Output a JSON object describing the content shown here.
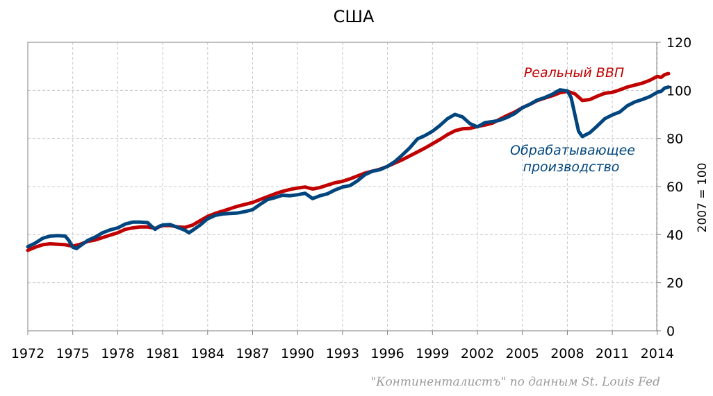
{
  "chart_data": {
    "type": "line",
    "title": "США",
    "ylabel": "2007 = 100",
    "ylim": [
      0,
      120
    ],
    "xlim": [
      1972,
      2014.75
    ],
    "y_ticks": [
      "0",
      "20",
      "40",
      "60",
      "80",
      "100",
      "120"
    ],
    "x_ticks": [
      "1972",
      "1975",
      "1978",
      "1981",
      "1984",
      "1987",
      "1990",
      "1993",
      "1996",
      "1999",
      "2002",
      "2005",
      "2008",
      "2011",
      "2014"
    ],
    "grid": true,
    "y_axis_position": "right",
    "colors": {
      "gdp": "#c00000",
      "manufacturing": "#00457e",
      "grid": "#c8c8c8",
      "axis": "#808080"
    },
    "series": [
      {
        "key": "gdp",
        "name": "Реальный ВВП",
        "points": [
          [
            1972.0,
            33.5
          ],
          [
            1972.5,
            34.8
          ],
          [
            1973.0,
            35.8
          ],
          [
            1973.5,
            36.2
          ],
          [
            1974.0,
            36.0
          ],
          [
            1974.5,
            35.8
          ],
          [
            1975.0,
            35.2
          ],
          [
            1975.5,
            36.0
          ],
          [
            1976.0,
            37.2
          ],
          [
            1976.5,
            37.8
          ],
          [
            1977.0,
            38.8
          ],
          [
            1977.5,
            39.8
          ],
          [
            1978.0,
            40.8
          ],
          [
            1978.5,
            42.2
          ],
          [
            1979.0,
            42.8
          ],
          [
            1979.5,
            43.2
          ],
          [
            1980.0,
            43.2
          ],
          [
            1980.5,
            42.6
          ],
          [
            1981.0,
            43.8
          ],
          [
            1981.5,
            43.8
          ],
          [
            1982.0,
            43.2
          ],
          [
            1982.5,
            43.0
          ],
          [
            1983.0,
            44.0
          ],
          [
            1983.5,
            45.8
          ],
          [
            1984.0,
            47.6
          ],
          [
            1984.5,
            48.8
          ],
          [
            1985.0,
            49.8
          ],
          [
            1985.5,
            50.8
          ],
          [
            1986.0,
            51.8
          ],
          [
            1986.5,
            52.6
          ],
          [
            1987.0,
            53.4
          ],
          [
            1987.5,
            54.6
          ],
          [
            1988.0,
            55.8
          ],
          [
            1988.5,
            57.0
          ],
          [
            1989.0,
            58.0
          ],
          [
            1989.5,
            58.8
          ],
          [
            1990.0,
            59.4
          ],
          [
            1990.5,
            59.8
          ],
          [
            1991.0,
            59.0
          ],
          [
            1991.5,
            59.6
          ],
          [
            1992.0,
            60.6
          ],
          [
            1992.5,
            61.6
          ],
          [
            1993.0,
            62.2
          ],
          [
            1993.5,
            63.2
          ],
          [
            1994.0,
            64.4
          ],
          [
            1994.5,
            65.6
          ],
          [
            1995.0,
            66.4
          ],
          [
            1995.5,
            67.2
          ],
          [
            1996.0,
            68.4
          ],
          [
            1996.5,
            69.8
          ],
          [
            1997.0,
            71.2
          ],
          [
            1997.5,
            72.8
          ],
          [
            1998.0,
            74.4
          ],
          [
            1998.5,
            76.0
          ],
          [
            1999.0,
            77.8
          ],
          [
            1999.5,
            79.6
          ],
          [
            2000.0,
            81.6
          ],
          [
            2000.5,
            83.2
          ],
          [
            2001.0,
            84.0
          ],
          [
            2001.5,
            84.2
          ],
          [
            2002.0,
            85.0
          ],
          [
            2002.5,
            85.6
          ],
          [
            2003.0,
            86.4
          ],
          [
            2003.5,
            88.0
          ],
          [
            2004.0,
            89.6
          ],
          [
            2004.5,
            91.0
          ],
          [
            2005.0,
            92.8
          ],
          [
            2005.5,
            94.2
          ],
          [
            2006.0,
            95.8
          ],
          [
            2006.5,
            96.8
          ],
          [
            2007.0,
            97.8
          ],
          [
            2007.5,
            99.0
          ],
          [
            2008.0,
            99.6
          ],
          [
            2008.5,
            98.6
          ],
          [
            2009.0,
            95.8
          ],
          [
            2009.5,
            96.2
          ],
          [
            2010.0,
            97.6
          ],
          [
            2010.5,
            98.8
          ],
          [
            2011.0,
            99.2
          ],
          [
            2011.5,
            100.2
          ],
          [
            2012.0,
            101.4
          ],
          [
            2012.5,
            102.2
          ],
          [
            2013.0,
            103.0
          ],
          [
            2013.5,
            104.2
          ],
          [
            2014.0,
            105.8
          ],
          [
            2014.25,
            105.4
          ],
          [
            2014.5,
            106.6
          ],
          [
            2014.75,
            107.0
          ]
        ]
      },
      {
        "key": "manufacturing",
        "name": "Обрабатывающее производство",
        "points": [
          [
            1972.0,
            35.0
          ],
          [
            1972.5,
            36.5
          ],
          [
            1973.0,
            38.5
          ],
          [
            1973.5,
            39.4
          ],
          [
            1974.0,
            39.6
          ],
          [
            1974.5,
            39.4
          ],
          [
            1974.75,
            37.5
          ],
          [
            1975.0,
            34.8
          ],
          [
            1975.25,
            34.2
          ],
          [
            1975.75,
            36.5
          ],
          [
            1976.0,
            37.6
          ],
          [
            1976.5,
            39.0
          ],
          [
            1977.0,
            40.8
          ],
          [
            1977.5,
            42.0
          ],
          [
            1978.0,
            42.8
          ],
          [
            1978.5,
            44.4
          ],
          [
            1979.0,
            45.2
          ],
          [
            1979.5,
            45.2
          ],
          [
            1980.0,
            45.0
          ],
          [
            1980.25,
            43.5
          ],
          [
            1980.5,
            42.2
          ],
          [
            1980.75,
            43.4
          ],
          [
            1981.0,
            44.0
          ],
          [
            1981.5,
            44.2
          ],
          [
            1982.0,
            43.0
          ],
          [
            1982.5,
            41.8
          ],
          [
            1982.75,
            40.8
          ],
          [
            1983.0,
            41.8
          ],
          [
            1983.5,
            44.0
          ],
          [
            1984.0,
            46.6
          ],
          [
            1984.5,
            48.0
          ],
          [
            1985.0,
            48.6
          ],
          [
            1985.5,
            48.8
          ],
          [
            1986.0,
            49.0
          ],
          [
            1986.5,
            49.6
          ],
          [
            1987.0,
            50.4
          ],
          [
            1987.5,
            52.6
          ],
          [
            1988.0,
            54.6
          ],
          [
            1988.5,
            55.4
          ],
          [
            1989.0,
            56.4
          ],
          [
            1989.5,
            56.2
          ],
          [
            1990.0,
            56.6
          ],
          [
            1990.5,
            57.2
          ],
          [
            1991.0,
            55.0
          ],
          [
            1991.5,
            56.2
          ],
          [
            1992.0,
            57.0
          ],
          [
            1992.5,
            58.6
          ],
          [
            1993.0,
            59.8
          ],
          [
            1993.5,
            60.4
          ],
          [
            1994.0,
            62.4
          ],
          [
            1994.5,
            65.0
          ],
          [
            1995.0,
            66.4
          ],
          [
            1995.5,
            67.0
          ],
          [
            1996.0,
            68.4
          ],
          [
            1996.5,
            70.4
          ],
          [
            1997.0,
            73.2
          ],
          [
            1997.5,
            76.2
          ],
          [
            1998.0,
            79.8
          ],
          [
            1998.5,
            81.2
          ],
          [
            1999.0,
            83.0
          ],
          [
            1999.5,
            85.4
          ],
          [
            2000.0,
            88.2
          ],
          [
            2000.5,
            90.0
          ],
          [
            2001.0,
            89.0
          ],
          [
            2001.5,
            86.2
          ],
          [
            2002.0,
            84.8
          ],
          [
            2002.5,
            86.6
          ],
          [
            2003.0,
            87.0
          ],
          [
            2003.5,
            87.6
          ],
          [
            2004.0,
            88.8
          ],
          [
            2004.5,
            90.4
          ],
          [
            2005.0,
            92.8
          ],
          [
            2005.5,
            94.2
          ],
          [
            2006.0,
            96.0
          ],
          [
            2006.5,
            97.0
          ],
          [
            2007.0,
            98.4
          ],
          [
            2007.5,
            100.2
          ],
          [
            2008.0,
            99.8
          ],
          [
            2008.25,
            97.0
          ],
          [
            2008.5,
            90.0
          ],
          [
            2008.75,
            83.0
          ],
          [
            2009.0,
            80.8
          ],
          [
            2009.5,
            82.4
          ],
          [
            2010.0,
            85.2
          ],
          [
            2010.5,
            88.2
          ],
          [
            2011.0,
            89.8
          ],
          [
            2011.5,
            91.0
          ],
          [
            2012.0,
            93.6
          ],
          [
            2012.5,
            95.2
          ],
          [
            2013.0,
            96.2
          ],
          [
            2013.5,
            97.4
          ],
          [
            2014.0,
            99.2
          ],
          [
            2014.25,
            99.6
          ],
          [
            2014.5,
            101.0
          ],
          [
            2014.75,
            101.4
          ]
        ]
      }
    ],
    "annotations": {
      "gdp_label": "Реальный ВВП",
      "manufacturing_label_line1": "Обрабатывающее",
      "manufacturing_label_line2": "производство"
    },
    "source": "\"Континенталистъ\" по данным St. Louis Fed"
  }
}
